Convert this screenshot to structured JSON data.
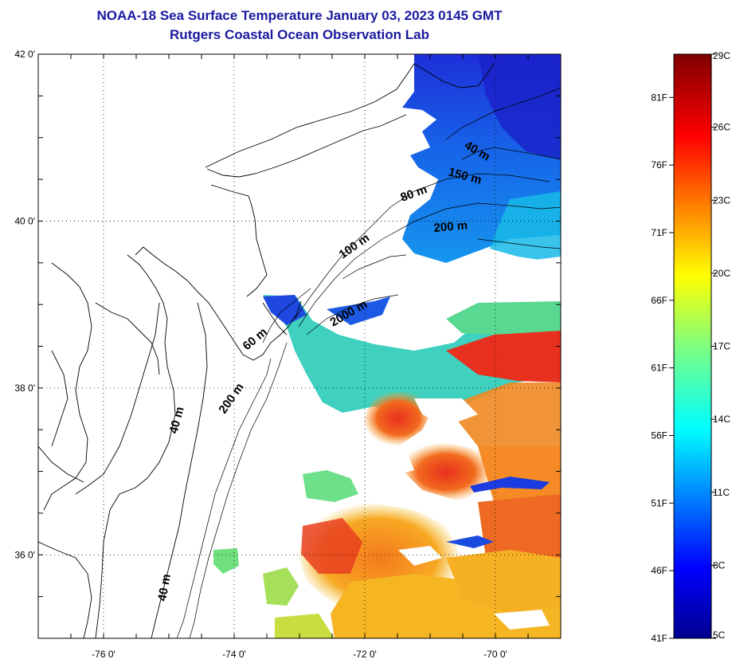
{
  "header": {
    "title": "NOAA-18 Sea Surface Temperature January 03, 2023 0145 GMT",
    "subtitle": "Rutgers Coastal Ocean Observation Lab"
  },
  "map": {
    "lat_range": [
      35,
      42
    ],
    "lon_range": [
      -77,
      -69
    ],
    "lat_ticks": [
      {
        "value": 42,
        "label": "42 0'"
      },
      {
        "value": 40,
        "label": "40 0'"
      },
      {
        "value": 38,
        "label": "38 0'"
      },
      {
        "value": 36,
        "label": "36 0'"
      }
    ],
    "lon_ticks": [
      {
        "value": -76,
        "label": "-76 0'"
      },
      {
        "value": -74,
        "label": "-74 0'"
      },
      {
        "value": -72,
        "label": "-72 0'"
      },
      {
        "value": -70,
        "label": "-70 0'"
      }
    ],
    "contour_labels": [
      "40 m",
      "150 m",
      "80 m",
      "200 m",
      "100 m",
      "2000 m",
      "60 m",
      "200 m",
      "40 m",
      "40 m"
    ],
    "colors": {
      "land_bg": "#ffffff",
      "coast": "#000000",
      "grid": "#000000"
    }
  },
  "colorbar": {
    "celsius_labels": [
      "29C",
      "26C",
      "23C",
      "20C",
      "17C",
      "14C",
      "11C",
      "8C",
      "5C"
    ],
    "fahrenheit_labels": [
      "81F",
      "76F",
      "71F",
      "66F",
      "61F",
      "56F",
      "51F",
      "46F",
      "41F"
    ],
    "range_c": [
      5,
      29
    ]
  }
}
